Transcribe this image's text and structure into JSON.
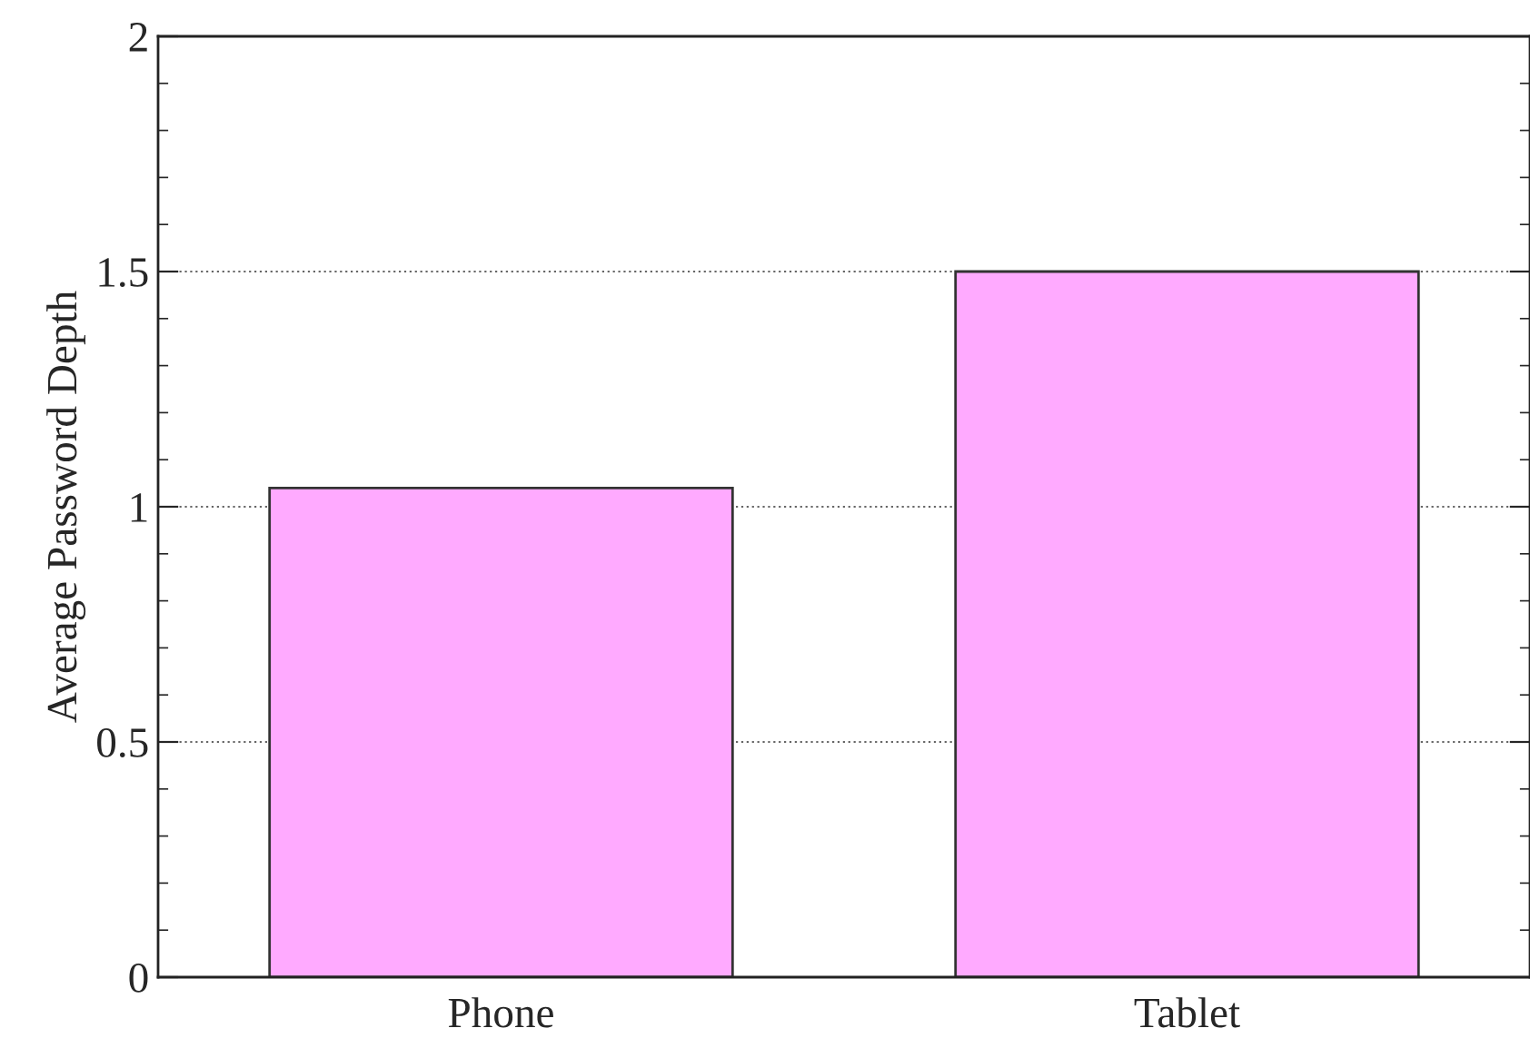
{
  "chart_data": {
    "type": "bar",
    "ylabel": "Average Password Depth",
    "categories": [
      "Phone",
      "Tablet"
    ],
    "values": [
      1.04,
      1.5
    ],
    "color": "#ffaaff",
    "ylim": [
      0,
      2
    ],
    "yticks": [
      0,
      0.5,
      1,
      1.5,
      2
    ],
    "grid": "y"
  }
}
